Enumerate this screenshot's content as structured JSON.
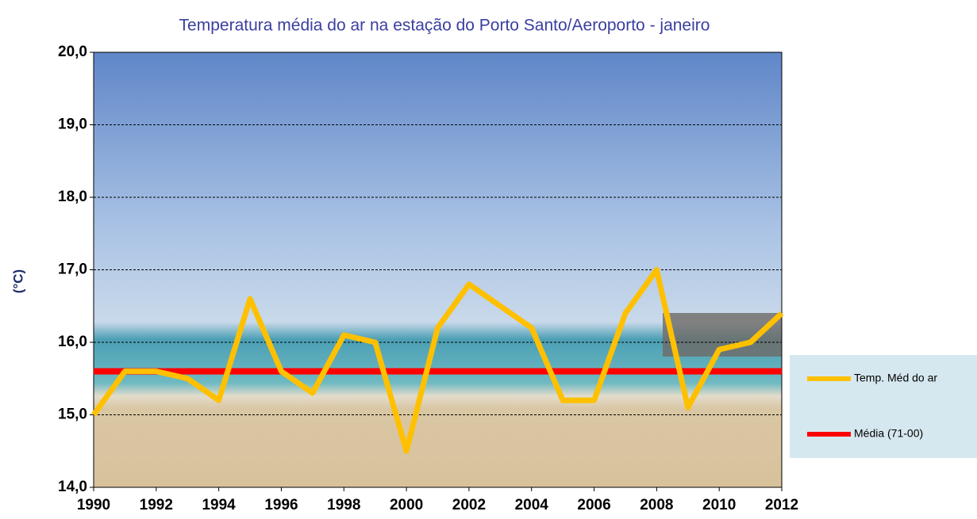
{
  "chart_data": {
    "type": "line",
    "title": "Temperatura média do ar na estação do Porto Santo/Aeroporto - janeiro",
    "y_label": "(°C)",
    "x": [
      1990,
      1991,
      1992,
      1993,
      1994,
      1995,
      1996,
      1997,
      1998,
      1999,
      2000,
      2001,
      2002,
      2003,
      2004,
      2005,
      2006,
      2007,
      2008,
      2009,
      2010,
      2011,
      2012
    ],
    "series": [
      {
        "name": "Temp. Méd do ar",
        "color": "#ffc000",
        "values": [
          15.0,
          15.6,
          15.6,
          15.5,
          15.2,
          16.6,
          15.6,
          15.3,
          16.1,
          16.0,
          14.5,
          16.2,
          16.8,
          16.5,
          16.2,
          15.2,
          15.2,
          16.4,
          17.0,
          15.1,
          15.9,
          16.0,
          16.4
        ]
      },
      {
        "name": "Média (71-00)",
        "color": "#ff0000",
        "values": [
          15.6,
          15.6,
          15.6,
          15.6,
          15.6,
          15.6,
          15.6,
          15.6,
          15.6,
          15.6,
          15.6,
          15.6,
          15.6,
          15.6,
          15.6,
          15.6,
          15.6,
          15.6,
          15.6,
          15.6,
          15.6,
          15.6,
          15.6
        ]
      }
    ],
    "xlim": [
      1990,
      2012
    ],
    "xticks": [
      1990,
      1992,
      1994,
      1996,
      1998,
      2000,
      2002,
      2004,
      2006,
      2008,
      2010,
      2012
    ],
    "ylim": [
      14,
      20
    ],
    "yticks": [
      {
        "value": 14,
        "label": "14,0"
      },
      {
        "value": 15,
        "label": "15,0"
      },
      {
        "value": 16,
        "label": "16,0"
      },
      {
        "value": 17,
        "label": "17,0"
      },
      {
        "value": 18,
        "label": "18,0"
      },
      {
        "value": 19,
        "label": "19,0"
      },
      {
        "value": 20,
        "label": "20,0"
      }
    ],
    "grid": true,
    "legend": "right"
  }
}
